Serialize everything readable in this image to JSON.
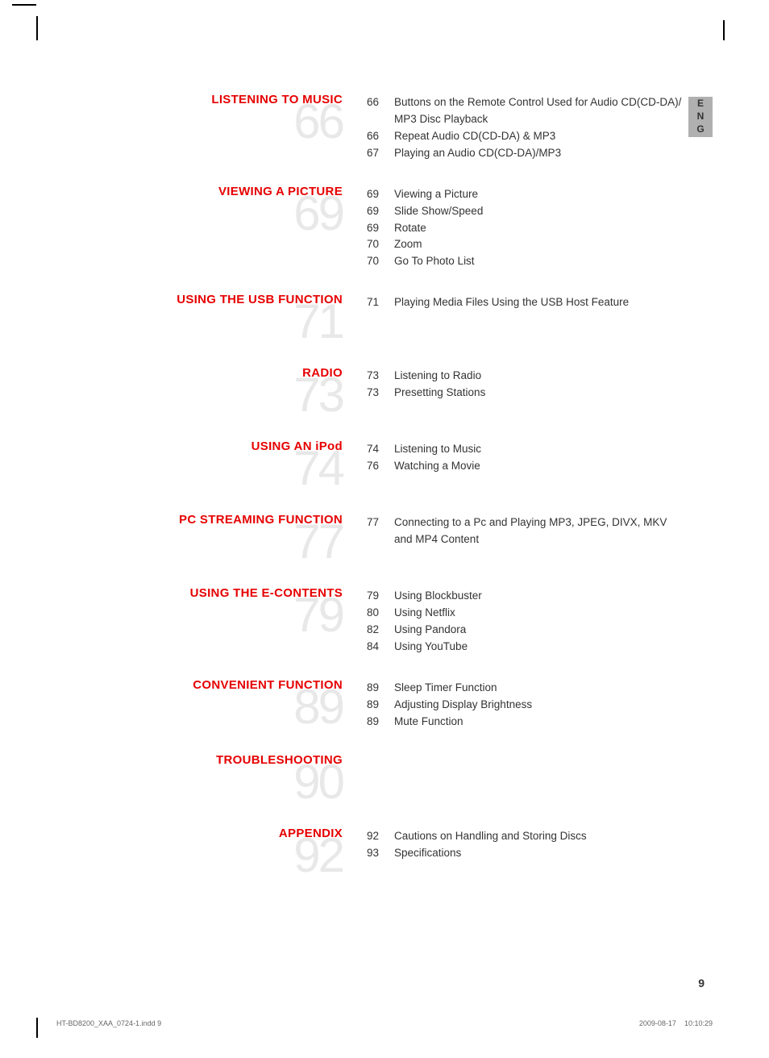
{
  "lang_label": "ENG",
  "page_number": "9",
  "footer_left": "HT-BD8200_XAA_0724-1.indd   9",
  "footer_date": "2009-08-17",
  "footer_time": "10:10:29",
  "sections": [
    {
      "title": "LISTENING TO MUSIC",
      "number": "66",
      "entries": [
        {
          "page": "66",
          "text": "Buttons on the Remote Control Used for Audio CD(CD-DA)/ MP3 Disc Playback"
        },
        {
          "page": "66",
          "text": "Repeat Audio CD(CD-DA) & MP3"
        },
        {
          "page": "67",
          "text": "Playing an Audio CD(CD-DA)/MP3"
        }
      ]
    },
    {
      "title": "VIEWING A PICTURE",
      "number": "69",
      "entries": [
        {
          "page": "69",
          "text": "Viewing a Picture"
        },
        {
          "page": "69",
          "text": "Slide Show/Speed"
        },
        {
          "page": "69",
          "text": "Rotate"
        },
        {
          "page": "70",
          "text": "Zoom"
        },
        {
          "page": "70",
          "text": "Go To Photo List"
        }
      ]
    },
    {
      "title": "USING THE USB FUNCTION",
      "number": "71",
      "entries": [
        {
          "page": "71",
          "text": "Playing Media Files Using the USB Host Feature"
        }
      ]
    },
    {
      "title": "RADIO",
      "number": "73",
      "entries": [
        {
          "page": "73",
          "text": "Listening to Radio"
        },
        {
          "page": "73",
          "text": "Presetting Stations"
        }
      ]
    },
    {
      "title": "USING AN iPod",
      "number": "74",
      "entries": [
        {
          "page": "74",
          "text": "Listening to Music"
        },
        {
          "page": "76",
          "text": "Watching a Movie"
        }
      ]
    },
    {
      "title": "PC STREAMING FUNCTION",
      "number": "77",
      "entries": [
        {
          "page": "77",
          "text": "Connecting to a Pc and Playing MP3, JPEG, DIVX, MKV and MP4 Content"
        }
      ]
    },
    {
      "title": "USING THE E-CONTENTS",
      "number": "79",
      "entries": [
        {
          "page": "79",
          "text": "Using Blockbuster"
        },
        {
          "page": "80",
          "text": "Using Netflix"
        },
        {
          "page": "82",
          "text": "Using Pandora"
        },
        {
          "page": "84",
          "text": "Using YouTube"
        }
      ]
    },
    {
      "title": "CONVENIENT FUNCTION",
      "number": "89",
      "entries": [
        {
          "page": "89",
          "text": "Sleep Timer Function"
        },
        {
          "page": "89",
          "text": "Adjusting Display Brightness"
        },
        {
          "page": "89",
          "text": "Mute Function"
        }
      ]
    },
    {
      "title": "TROUBLESHOOTING",
      "number": "90",
      "entries": []
    },
    {
      "title": "APPENDIX",
      "number": "92",
      "entries": [
        {
          "page": "92",
          "text": "Cautions on Handling and Storing Discs"
        },
        {
          "page": "93",
          "text": "Specifications"
        }
      ]
    }
  ]
}
